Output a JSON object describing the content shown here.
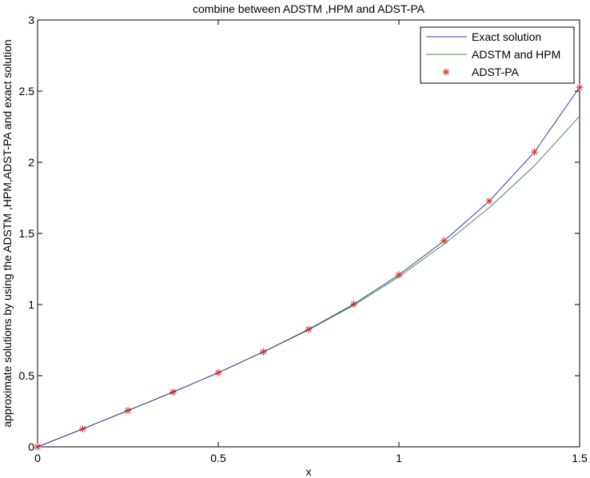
{
  "chart_data": {
    "type": "line",
    "title": "combine between ADSTM ,HPM and ADST-PA",
    "xlabel": "x",
    "ylabel": "approximate solutions by using the ADSTM ,HPM,ADST-PA and exact solution",
    "xlim": [
      0,
      1.5
    ],
    "ylim": [
      0,
      3
    ],
    "xticks": [
      0,
      0.5,
      1,
      1.5
    ],
    "xtick_labels": [
      "0",
      "0.5",
      "1",
      "1.5"
    ],
    "yticks": [
      0,
      0.5,
      1,
      1.5,
      2,
      2.5,
      3
    ],
    "ytick_labels": [
      "0",
      "0.5",
      "1",
      "1.5",
      "2",
      "2.5",
      "3"
    ],
    "grid": false,
    "legend_position": "top-right",
    "x": [
      0,
      0.125,
      0.25,
      0.375,
      0.5,
      0.625,
      0.75,
      0.875,
      1.0,
      1.125,
      1.25,
      1.375,
      1.5
    ],
    "series": [
      {
        "name": "Exact solution",
        "style": "line",
        "color": "#3c3c96",
        "values": [
          0,
          0.126,
          0.255,
          0.385,
          0.521,
          0.668,
          0.825,
          1.003,
          1.209,
          1.448,
          1.727,
          2.072,
          2.527
        ]
      },
      {
        "name": "ADSTM and HPM",
        "style": "line",
        "color": "#4a8a4a",
        "values": [
          0,
          0.126,
          0.255,
          0.385,
          0.521,
          0.667,
          0.822,
          0.995,
          1.195,
          1.425,
          1.681,
          1.975,
          2.324
        ]
      },
      {
        "name": "ADST-PA",
        "style": "marker",
        "marker": "*",
        "color": "#d03030",
        "values": [
          0,
          0.126,
          0.255,
          0.385,
          0.521,
          0.668,
          0.825,
          1.003,
          1.209,
          1.448,
          1.727,
          2.072,
          2.527
        ]
      }
    ]
  }
}
